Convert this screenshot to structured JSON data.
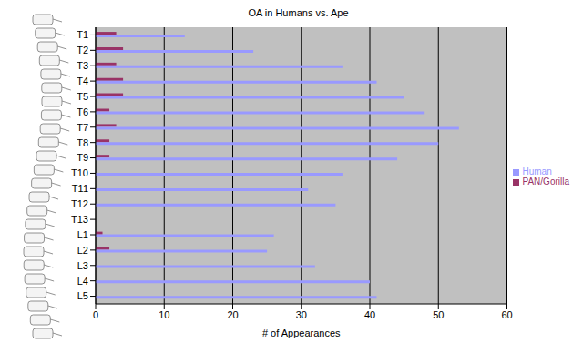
{
  "chart_data": {
    "type": "bar",
    "title": "OA in Humans vs. Ape",
    "xlabel": "# of Appearances",
    "orientation": "horizontal",
    "categories": [
      "T1",
      "T2",
      "T3",
      "T4",
      "T5",
      "T6",
      "T7",
      "T8",
      "T9",
      "T10",
      "T11",
      "T12",
      "T13",
      "L1",
      "L2",
      "L3",
      "L4",
      "L5"
    ],
    "series": [
      {
        "name": "PAN/Gorilla",
        "color": "#993366",
        "values": [
          3,
          4,
          3,
          4,
          4,
          2,
          3,
          2,
          2,
          0,
          0,
          0,
          0,
          1,
          2,
          0,
          0,
          0
        ]
      },
      {
        "name": "Human",
        "color": "#9999ff",
        "values": [
          13,
          23,
          36,
          41,
          45,
          48,
          53,
          50,
          44,
          36,
          31,
          35,
          0,
          26,
          25,
          32,
          40,
          41
        ]
      }
    ],
    "xlim": [
      0,
      60
    ],
    "xticks": [
      0,
      10,
      20,
      30,
      40,
      50,
      60
    ],
    "grid": true,
    "legend": "right"
  }
}
